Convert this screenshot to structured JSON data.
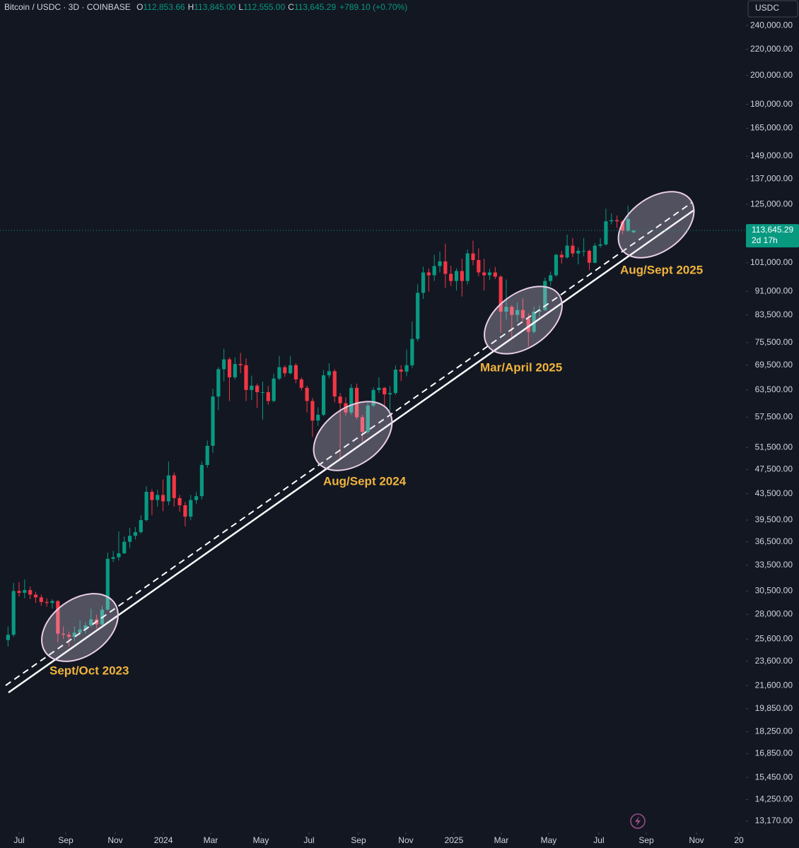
{
  "chart_data": {
    "type": "candlestick",
    "title": "Bitcoin / USDC · 3D · COINBASE",
    "ohlc_legend": [
      {
        "key": "O",
        "value": "112,853.66"
      },
      {
        "key": "H",
        "value": "113,845.00"
      },
      {
        "key": "L",
        "value": "112,555.00"
      },
      {
        "key": "C",
        "value": "113,645.29"
      }
    ],
    "change": "+789.10 (+0.70%)",
    "currency": "USDC",
    "last_price": {
      "value": 113645.29,
      "label": "113,645.29"
    },
    "countdown": "2d 17h",
    "up_color": "#089981",
    "down_color": "#f23645",
    "log_scale": true,
    "ylim": [
      12640,
      263400
    ],
    "yticks": [
      {
        "value": 240000,
        "label": "240,000.00"
      },
      {
        "value": 220000,
        "label": "220,000.00"
      },
      {
        "value": 200000,
        "label": "200,000.00"
      },
      {
        "value": 180000,
        "label": "180,000.00"
      },
      {
        "value": 165000,
        "label": "165,000.00"
      },
      {
        "value": 149000,
        "label": "149,000.00"
      },
      {
        "value": 137000,
        "label": "137,000.00"
      },
      {
        "value": 125000,
        "label": "125,000.00"
      },
      {
        "value": 101000,
        "label": "101,000.00"
      },
      {
        "value": 91000,
        "label": "91,000.00"
      },
      {
        "value": 83500,
        "label": "83,500.00"
      },
      {
        "value": 75500,
        "label": "75,500.00"
      },
      {
        "value": 69500,
        "label": "69,500.00"
      },
      {
        "value": 63500,
        "label": "63,500.00"
      },
      {
        "value": 57500,
        "label": "57,500.00"
      },
      {
        "value": 51500,
        "label": "51,500.00"
      },
      {
        "value": 47500,
        "label": "47,500.00"
      },
      {
        "value": 43500,
        "label": "43,500.00"
      },
      {
        "value": 39500,
        "label": "39,500.00"
      },
      {
        "value": 36500,
        "label": "36,500.00"
      },
      {
        "value": 33500,
        "label": "33,500.00"
      },
      {
        "value": 30500,
        "label": "30,500.00"
      },
      {
        "value": 28000,
        "label": "28,000.00"
      },
      {
        "value": 25600,
        "label": "25,600.00"
      },
      {
        "value": 23600,
        "label": "23,600.00"
      },
      {
        "value": 21600,
        "label": "21,600.00"
      },
      {
        "value": 19850,
        "label": "19,850.00"
      },
      {
        "value": 18250,
        "label": "18,250.00"
      },
      {
        "value": 16850,
        "label": "16,850.00"
      },
      {
        "value": 15450,
        "label": "15,450.00"
      },
      {
        "value": 14250,
        "label": "14,250.00"
      },
      {
        "value": 13170,
        "label": "13,170.00"
      }
    ],
    "xlim": [
      -1.45,
      133.3
    ],
    "xticks": [
      {
        "value": 2.0,
        "label": "Jul"
      },
      {
        "value": 10.43,
        "label": "Sep"
      },
      {
        "value": 19.37,
        "label": "Nov"
      },
      {
        "value": 28.06,
        "label": "2024"
      },
      {
        "value": 36.61,
        "label": "Mar"
      },
      {
        "value": 45.68,
        "label": "May"
      },
      {
        "value": 54.37,
        "label": "Jul"
      },
      {
        "value": 63.3,
        "label": "Sep"
      },
      {
        "value": 71.86,
        "label": "Nov"
      },
      {
        "value": 80.54,
        "label": "2025"
      },
      {
        "value": 89.1,
        "label": "Mar"
      },
      {
        "value": 97.66,
        "label": "May"
      },
      {
        "value": 106.73,
        "label": "Jul"
      },
      {
        "value": 115.29,
        "label": "Sep"
      },
      {
        "value": 124.36,
        "label": "Nov"
      },
      {
        "value": 132.03,
        "label": "20"
      }
    ],
    "annotations": [
      "Sept/Oct 2023",
      "Aug/Sept 2024",
      "Mar/April 2025",
      "Aug/Sept 2025"
    ],
    "candles": [
      [
        25500,
        26800,
        24900,
        26000
      ],
      [
        26000,
        31400,
        25800,
        30500
      ],
      [
        30500,
        31500,
        29900,
        30300
      ],
      [
        30300,
        31800,
        29700,
        30600
      ],
      [
        30600,
        31000,
        29600,
        30100
      ],
      [
        30100,
        30400,
        29200,
        29800
      ],
      [
        29800,
        30100,
        28900,
        29300
      ],
      [
        29300,
        29700,
        28800,
        29200
      ],
      [
        29200,
        29600,
        28600,
        29400
      ],
      [
        29400,
        29500,
        25300,
        26100
      ],
      [
        26100,
        26800,
        25600,
        26000
      ],
      [
        26000,
        26300,
        24900,
        25800
      ],
      [
        25800,
        26800,
        25400,
        26200
      ],
      [
        26200,
        27400,
        26000,
        26500
      ],
      [
        26500,
        27200,
        26100,
        26900
      ],
      [
        26900,
        28600,
        26700,
        27500
      ],
      [
        27500,
        28000,
        26600,
        27000
      ],
      [
        27000,
        28900,
        26800,
        28500
      ],
      [
        28500,
        35100,
        28400,
        34300
      ],
      [
        34300,
        35300,
        33900,
        34500
      ],
      [
        34500,
        37900,
        34100,
        35000
      ],
      [
        35000,
        37200,
        34900,
        36500
      ],
      [
        36500,
        38400,
        35700,
        37300
      ],
      [
        37300,
        38500,
        36800,
        37800
      ],
      [
        37800,
        40200,
        37600,
        39500
      ],
      [
        39500,
        44700,
        39300,
        43800
      ],
      [
        43800,
        44200,
        40200,
        42500
      ],
      [
        42500,
        44100,
        41500,
        43300
      ],
      [
        43300,
        45800,
        40800,
        42300
      ],
      [
        42300,
        48900,
        41700,
        46500
      ],
      [
        46500,
        47000,
        41500,
        42800
      ],
      [
        42800,
        43300,
        40700,
        41700
      ],
      [
        41700,
        42200,
        38600,
        40000
      ],
      [
        40000,
        43300,
        39500,
        42500
      ],
      [
        42500,
        43800,
        41900,
        43100
      ],
      [
        43100,
        48900,
        42600,
        48300
      ],
      [
        48300,
        52800,
        47800,
        51800
      ],
      [
        51800,
        63800,
        50500,
        62000
      ],
      [
        62000,
        69000,
        59000,
        68500
      ],
      [
        68500,
        73800,
        65500,
        71000
      ],
      [
        71000,
        71500,
        61000,
        66500
      ],
      [
        66500,
        71500,
        66000,
        69800
      ],
      [
        69800,
        72700,
        67500,
        69500
      ],
      [
        69500,
        71200,
        61000,
        63500
      ],
      [
        63500,
        66900,
        61200,
        64500
      ],
      [
        64500,
        65000,
        59500,
        63000
      ],
      [
        63000,
        65500,
        57000,
        63000
      ],
      [
        63000,
        64400,
        60200,
        61000
      ],
      [
        61000,
        67400,
        60700,
        66200
      ],
      [
        66200,
        71900,
        65800,
        69000
      ],
      [
        69000,
        69500,
        66600,
        67500
      ],
      [
        67500,
        71900,
        67200,
        69500
      ],
      [
        69500,
        70000,
        65100,
        66000
      ],
      [
        66000,
        66500,
        63400,
        64000
      ],
      [
        64000,
        64500,
        58500,
        61000
      ],
      [
        61000,
        61700,
        53500,
        56800
      ],
      [
        56800,
        59600,
        55700,
        58000
      ],
      [
        58000,
        68300,
        57700,
        67000
      ],
      [
        67000,
        70000,
        66300,
        68000
      ],
      [
        68000,
        68500,
        60700,
        62000
      ],
      [
        62000,
        62800,
        49500,
        60500
      ],
      [
        60500,
        61800,
        57800,
        58500
      ],
      [
        58500,
        64900,
        58000,
        64000
      ],
      [
        64000,
        65000,
        57100,
        57500
      ],
      [
        57500,
        58000,
        52600,
        54500
      ],
      [
        54500,
        60600,
        54100,
        60000
      ],
      [
        60000,
        64100,
        59700,
        63500
      ],
      [
        63500,
        66500,
        62800,
        64000
      ],
      [
        64000,
        64200,
        59800,
        62500
      ],
      [
        62500,
        64400,
        58900,
        62800
      ],
      [
        62800,
        69400,
        62400,
        68400
      ],
      [
        68400,
        69500,
        65600,
        67900
      ],
      [
        67900,
        73600,
        66800,
        69500
      ],
      [
        69500,
        81500,
        68800,
        76500
      ],
      [
        76500,
        93400,
        75800,
        90500
      ],
      [
        90500,
        99600,
        88500,
        97500
      ],
      [
        97500,
        98900,
        90900,
        96500
      ],
      [
        96500,
        104000,
        94500,
        99800
      ],
      [
        99800,
        105200,
        97500,
        101500
      ],
      [
        101500,
        108300,
        92200,
        97000
      ],
      [
        97000,
        99900,
        92800,
        94500
      ],
      [
        94500,
        99000,
        91300,
        98000
      ],
      [
        98000,
        102500,
        89300,
        94500
      ],
      [
        94500,
        106000,
        93300,
        104500
      ],
      [
        104500,
        109500,
        100100,
        102000
      ],
      [
        102000,
        106400,
        96200,
        97500
      ],
      [
        97500,
        102500,
        91300,
        96500
      ],
      [
        96500,
        98800,
        94800,
        97500
      ],
      [
        97500,
        99500,
        95200,
        96000
      ],
      [
        96000,
        96500,
        78300,
        84500
      ],
      [
        84500,
        95000,
        82000,
        86000
      ],
      [
        86000,
        86500,
        76600,
        83500
      ],
      [
        83500,
        87400,
        81500,
        85000
      ],
      [
        85000,
        88700,
        81700,
        82500
      ],
      [
        82500,
        84000,
        74500,
        78500
      ],
      [
        78500,
        86100,
        78000,
        84500
      ],
      [
        84500,
        86500,
        83000,
        85000
      ],
      [
        85000,
        95700,
        84700,
        94500
      ],
      [
        94500,
        97800,
        92800,
        96500
      ],
      [
        96500,
        104300,
        96000,
        104000
      ],
      [
        104000,
        105500,
        100700,
        103000
      ],
      [
        103000,
        111900,
        102500,
        107500
      ],
      [
        107500,
        110500,
        103100,
        104500
      ],
      [
        104500,
        106800,
        100400,
        105500
      ],
      [
        105500,
        110600,
        103400,
        105500
      ],
      [
        105500,
        106000,
        98300,
        101000
      ],
      [
        101000,
        108500,
        100800,
        107500
      ],
      [
        107500,
        110500,
        106700,
        108000
      ],
      [
        108000,
        123000,
        107500,
        117500
      ],
      [
        117500,
        120900,
        116200,
        118000
      ],
      [
        118000,
        120000,
        114700,
        117500
      ],
      [
        117500,
        118000,
        112000,
        113500
      ],
      [
        113500,
        124400,
        113000,
        118500
      ],
      [
        112853.66,
        113845,
        112555,
        113645.29
      ]
    ]
  }
}
